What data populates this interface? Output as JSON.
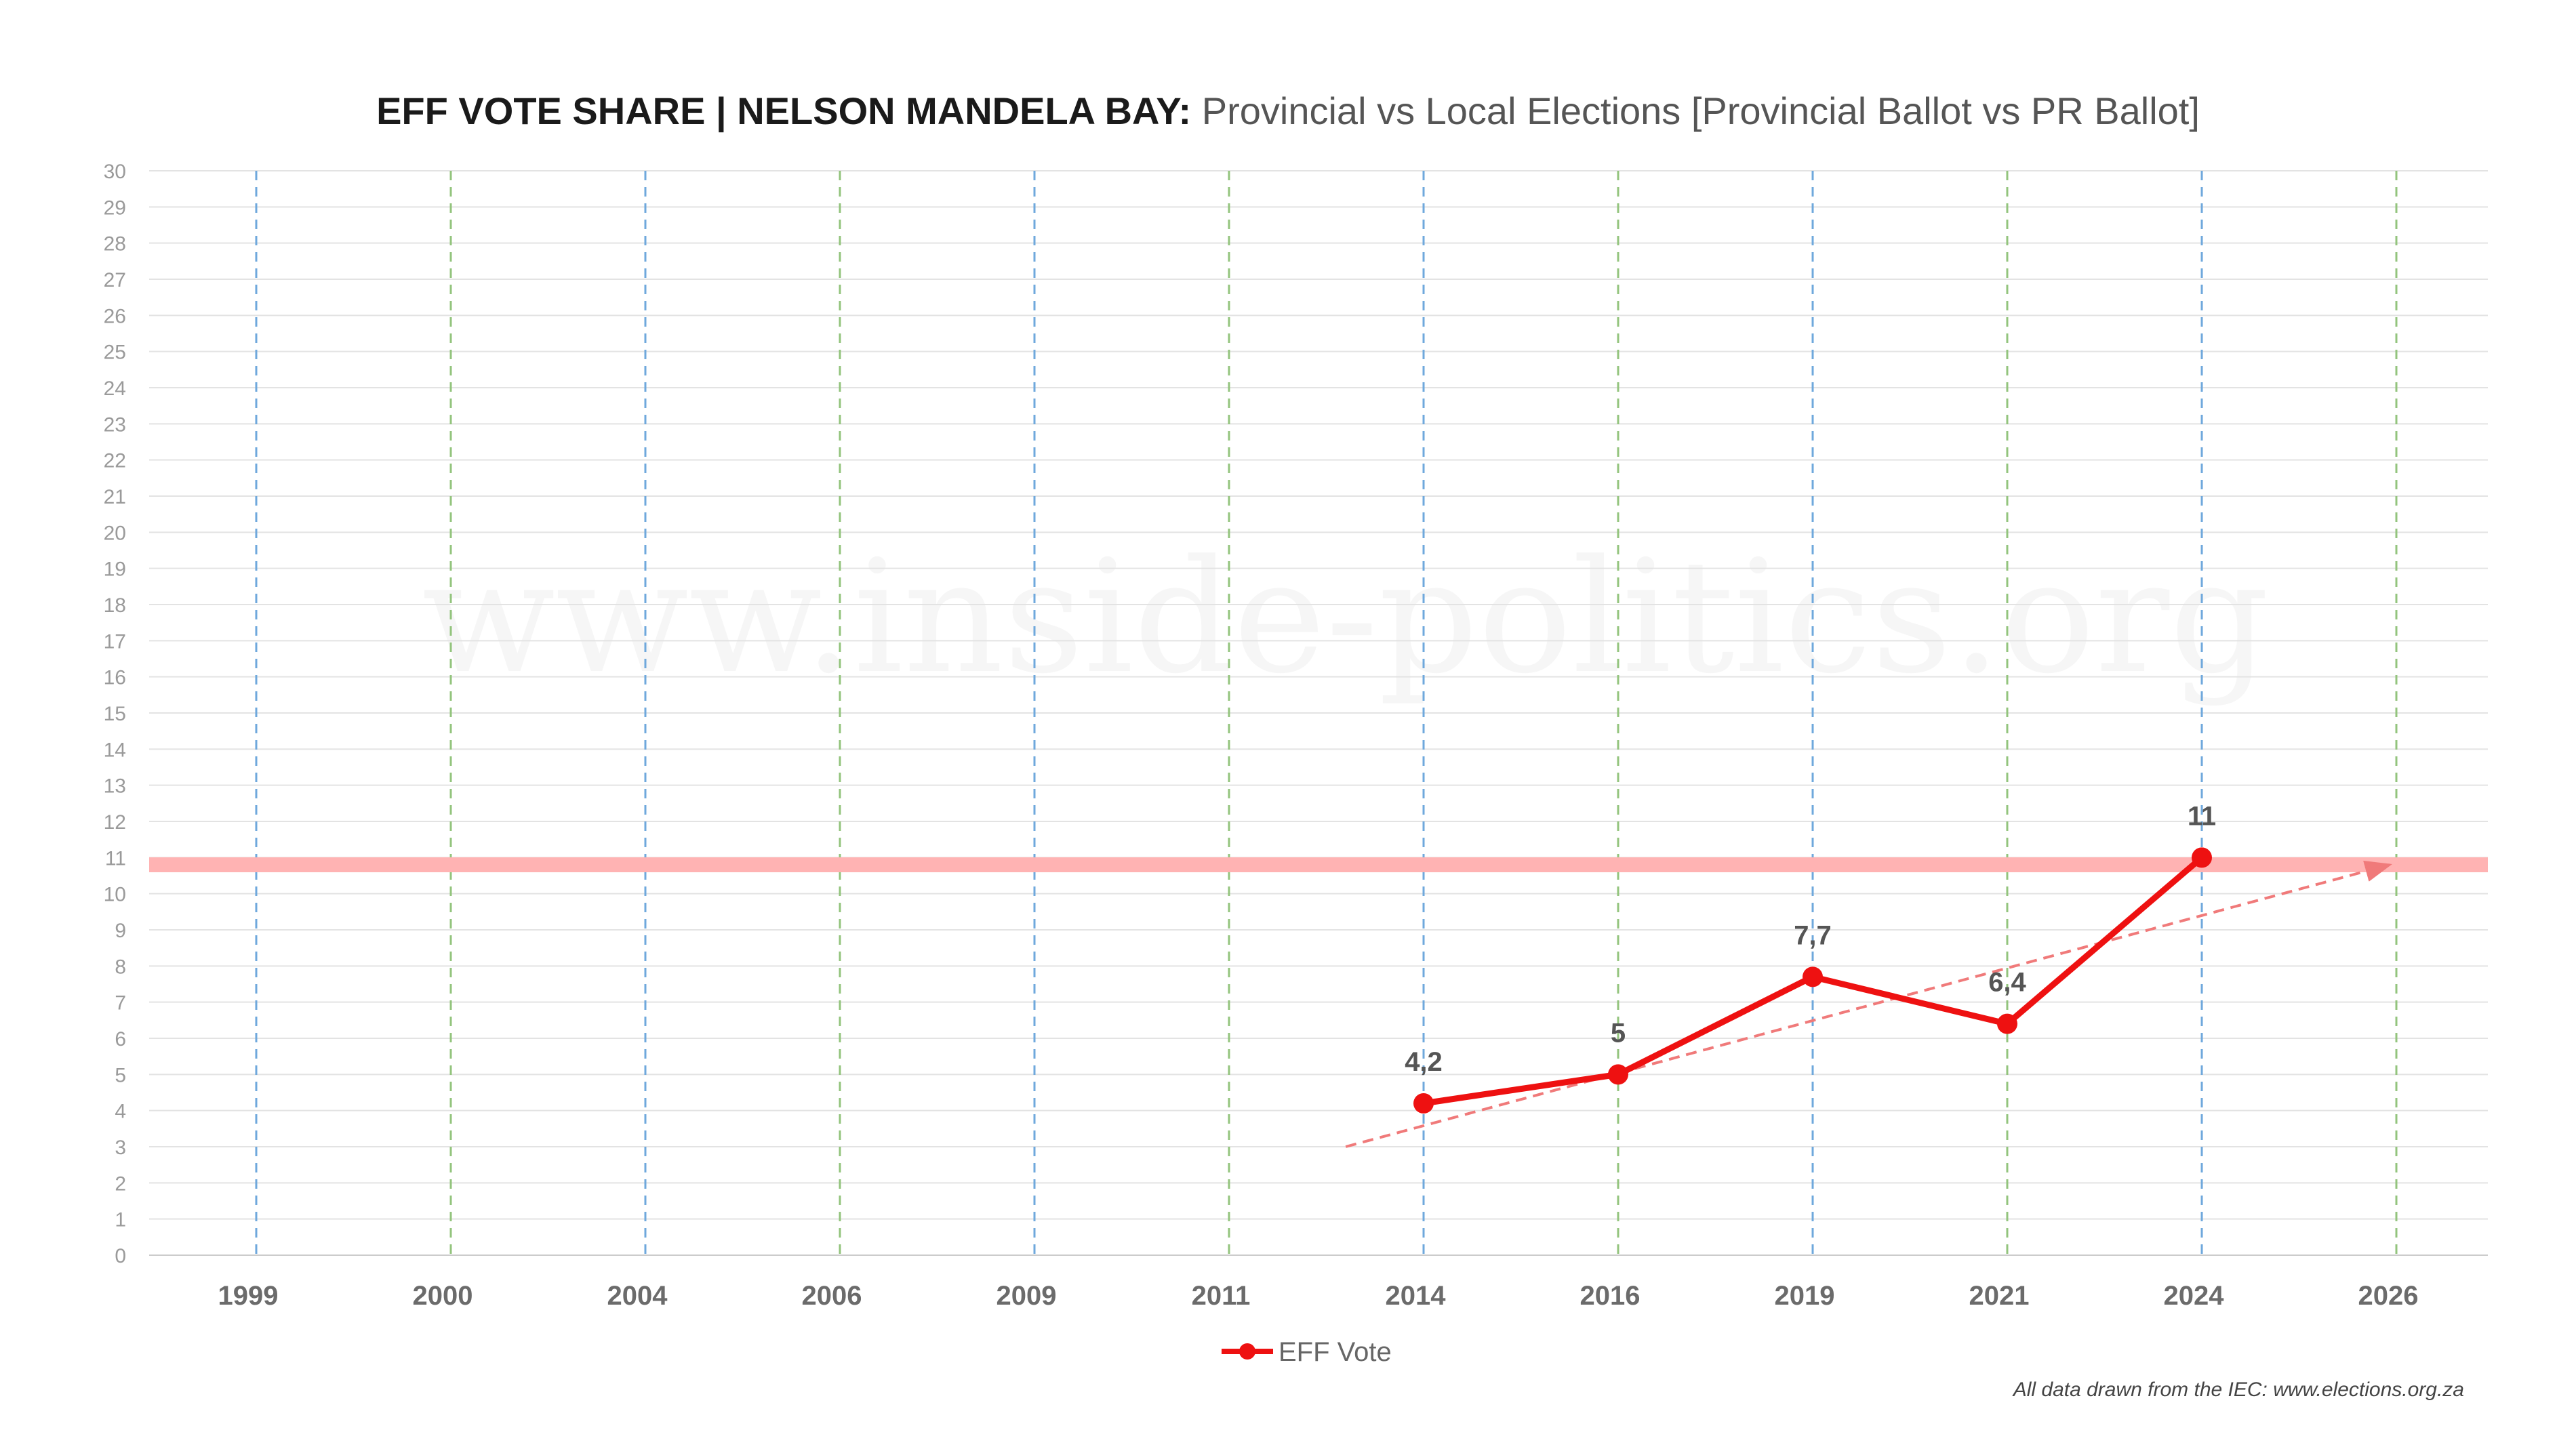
{
  "title": {
    "bold": "EFF VOTE SHARE | NELSON MANDELA BAY:",
    "regular": " Provincial vs Local Elections [Provincial Ballot vs PR Ballot]"
  },
  "watermark": "www.inside-politics.org",
  "source_note": "All data drawn from the IEC: www.elections.org.za",
  "colors": {
    "series": "#ee1111",
    "reference_band": "#ffb3b3",
    "trend": "#f07a7a",
    "provincial_gridline": "#6fa8dc",
    "local_gridline": "#93c47d",
    "horizontal_grid": "#e3e3e3",
    "axis": "#cccccc"
  },
  "chart_data": {
    "type": "line",
    "title": "EFF VOTE SHARE | NELSON MANDELA BAY: Provincial vs Local Elections [Provincial Ballot vs PR Ballot]",
    "xlabel": "",
    "ylabel": "",
    "categories": [
      "1999",
      "2000",
      "2004",
      "2006",
      "2009",
      "2011",
      "2014",
      "2016",
      "2019",
      "2021",
      "2024",
      "2026"
    ],
    "category_election_type": [
      "provincial",
      "local",
      "provincial",
      "local",
      "provincial",
      "local",
      "provincial",
      "local",
      "provincial",
      "local",
      "provincial",
      "local"
    ],
    "ylim": [
      0,
      30
    ],
    "ytick_step": 1,
    "series": [
      {
        "name": "EFF Vote",
        "values": [
          null,
          null,
          null,
          null,
          null,
          null,
          4.2,
          5,
          7.7,
          6.4,
          11,
          null
        ],
        "data_labels": [
          "",
          "",
          "",
          "",
          "",
          "",
          "4,2",
          "5",
          "7,7",
          "6,4",
          "11",
          ""
        ]
      }
    ],
    "reference_line": {
      "value": 10.8
    },
    "trend_line": {
      "from": {
        "x_index": 5.6,
        "y": 3
      },
      "to": {
        "x_index": 11,
        "y": 10.8
      }
    },
    "grid": true,
    "legend_position": "bottom-center"
  }
}
